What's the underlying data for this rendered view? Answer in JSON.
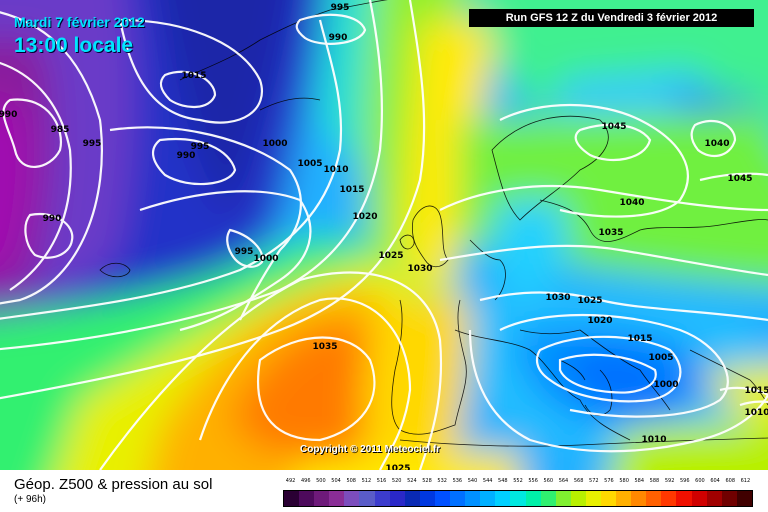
{
  "header": {
    "date": "Mardi 7 février 2012",
    "time": "13:00 locale",
    "run": "Run GFS 12 Z du Vendredi 3 février 2012"
  },
  "footer": {
    "copyright": "Copyright © 2011 Meteociel.fr",
    "legend_title": "Géop. Z500 & pression au sol",
    "legend_sub": "(+ 96h)"
  },
  "isobar_labels": [
    "995",
    "990",
    "1015",
    "985",
    "990",
    "995",
    "990",
    "1000",
    "995",
    "1005",
    "1010",
    "1015",
    "1020",
    "995",
    "1000",
    "990",
    "1025",
    "1030",
    "1035",
    "1025",
    "1030",
    "1025",
    "1020",
    "1015",
    "1045",
    "1040",
    "1045",
    "1040",
    "1035",
    "1005",
    "1000",
    "1010",
    "1015",
    "1010"
  ],
  "scale": {
    "labels": [
      "492",
      "496",
      "500",
      "504",
      "508",
      "512",
      "516",
      "520",
      "524",
      "528",
      "532",
      "536",
      "540",
      "544",
      "548",
      "552",
      "556",
      "560",
      "564",
      "568",
      "572",
      "576",
      "580",
      "584",
      "588",
      "592",
      "596",
      "600",
      "604",
      "608",
      "612"
    ],
    "colors": [
      "#2a0033",
      "#4d0a5c",
      "#6e1a7a",
      "#8a2d96",
      "#7c4dbd",
      "#5a5cc8",
      "#3c3ccd",
      "#2a28c8",
      "#0a2ab4",
      "#0038e0",
      "#0050ff",
      "#0070ff",
      "#0090ff",
      "#00b0ff",
      "#00d0ff",
      "#00e8e0",
      "#00f0a8",
      "#30f070",
      "#80f030",
      "#b8f000",
      "#e8f000",
      "#ffd800",
      "#ffb000",
      "#ff8800",
      "#ff6000",
      "#ff3800",
      "#f01000",
      "#d00000",
      "#a00000",
      "#700000",
      "#400000"
    ]
  }
}
